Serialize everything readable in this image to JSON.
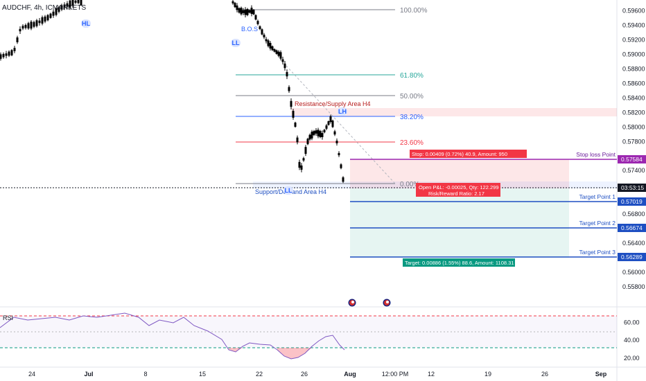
{
  "header": {
    "symbol": "AUDCHF, 4h, ICMARKETS"
  },
  "price_axis": {
    "ticks": [
      "0.59600",
      "0.59400",
      "0.59200",
      "0.59000",
      "0.58800",
      "0.58600",
      "0.58400",
      "0.58200",
      "0.58000",
      "0.57800",
      "0.57400",
      "0.56800",
      "0.56600",
      "0.56400",
      "0.56200",
      "0.56000",
      "0.55800"
    ],
    "ticks_values": [
      0.596,
      0.594,
      0.592,
      0.59,
      0.588,
      0.586,
      0.584,
      0.582,
      0.58,
      0.578,
      0.574,
      0.568,
      0.566,
      0.564,
      0.562,
      0.56,
      0.558
    ],
    "current_price_box": "03:53:15",
    "stop_loss_box": "0.57584",
    "target1_box": "0.57019",
    "target2_box": "0.56674",
    "target3_box": "0.56289",
    "color_stop": "#9c27b0",
    "color_target": "#1e4fc2"
  },
  "rsi_axis": {
    "ticks": [
      "60.00",
      "40.00",
      "20.00"
    ],
    "ticks_values": [
      60,
      40,
      20
    ],
    "label": "RSI"
  },
  "time_axis": {
    "ticks": [
      "24",
      "Jul",
      "8",
      "15",
      "22",
      "26",
      "Aug",
      "12:00 PM",
      "12",
      "19",
      "26",
      "Sep"
    ],
    "highlight": "Aug"
  },
  "fib_levels": [
    {
      "label": "100.00%",
      "color": "#787b86"
    },
    {
      "label": "61.80%",
      "color": "#26a69a"
    },
    {
      "label": "50.00%",
      "color": "#787b86"
    },
    {
      "label": "38.20%",
      "color": "#2962ff"
    },
    {
      "label": "23.60%",
      "color": "#f23645"
    },
    {
      "label": "0.00%",
      "color": "#787b86"
    }
  ],
  "annotations": {
    "hl": "HL",
    "ll": "LL",
    "bos": "B.O.S",
    "lh": "LH",
    "ll2": "LL",
    "resistance": "Resistance/Supply Area H4",
    "support": "Support/Demand Area H4",
    "stop_loss_point": "Stop loss Point",
    "target_point_1": "Target Point 1",
    "target_point_2": "Target Point 2",
    "target_point_3": "Target Point 3"
  },
  "position_tool": {
    "stop_label": "Stop: 0.00409 (0.72%) 40.9, Amount: 950",
    "open_pnl_label": "Open P&L: -0.00025, Qty: 122.299",
    "risk_reward_label": "Risk/Reward Ratio: 2.17",
    "target_label": "Target: 0.00886 (1.55%) 88.6, Amount: 1108.31",
    "stop_color": "#f23645",
    "target_color": "#089981"
  },
  "chart_data": {
    "type": "candlestick",
    "symbol": "AUDCHF",
    "timeframe": "4h",
    "ylim": [
      0.5555,
      0.5975
    ],
    "levels": {
      "stop_loss": 0.57584,
      "target_1": 0.57019,
      "target_2": 0.56674,
      "target_3": 0.56289
    },
    "rsi": {
      "ylim": [
        10,
        75
      ],
      "upper": 70,
      "lower": 30
    }
  }
}
